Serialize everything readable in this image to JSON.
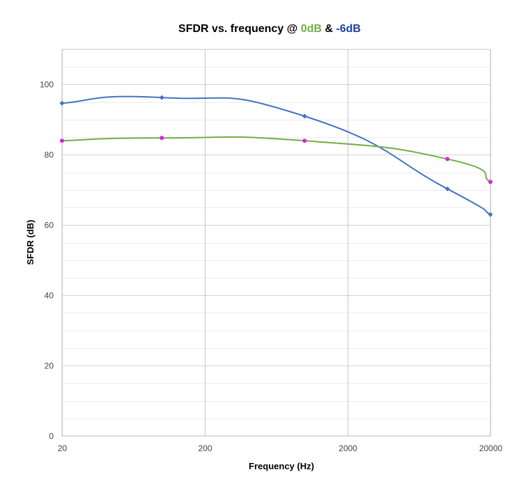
{
  "chart_data": {
    "type": "line",
    "title_parts": [
      "SFDR vs. frequency @ ",
      "0dB",
      " & ",
      "-6dB"
    ],
    "title_colors": [
      "#000000",
      "#70ad47",
      "#000000",
      "#1f3fa0"
    ],
    "xlabel": "Frequency (Hz)",
    "ylabel": "SFDR (dB)",
    "x_scale": "log",
    "xlim": [
      20,
      20000
    ],
    "ylim": [
      0,
      110
    ],
    "x_ticks": [
      20,
      200,
      2000,
      20000
    ],
    "x_tick_labels": [
      "20",
      "200",
      "2000",
      "20000"
    ],
    "y_ticks": [
      0,
      20,
      40,
      60,
      80,
      100
    ],
    "y_tick_labels": [
      "0",
      "20",
      "40",
      "60",
      "80",
      "100"
    ],
    "grid": true,
    "legend": "none",
    "series": [
      {
        "color": "#4472c4",
        "marker": "diamond",
        "marker_color": "#4472c4",
        "x": [
          20,
          100,
          1000,
          10000,
          20000
        ],
        "y": [
          94.7,
          96.3,
          91.0,
          70.3,
          63.0
        ]
      },
      {
        "color": "#70ad47",
        "marker": "circle",
        "marker_color": "#e020e0",
        "x": [
          20,
          100,
          1000,
          10000,
          20000
        ],
        "y": [
          84.0,
          84.8,
          84.0,
          78.8,
          72.3
        ]
      }
    ]
  }
}
